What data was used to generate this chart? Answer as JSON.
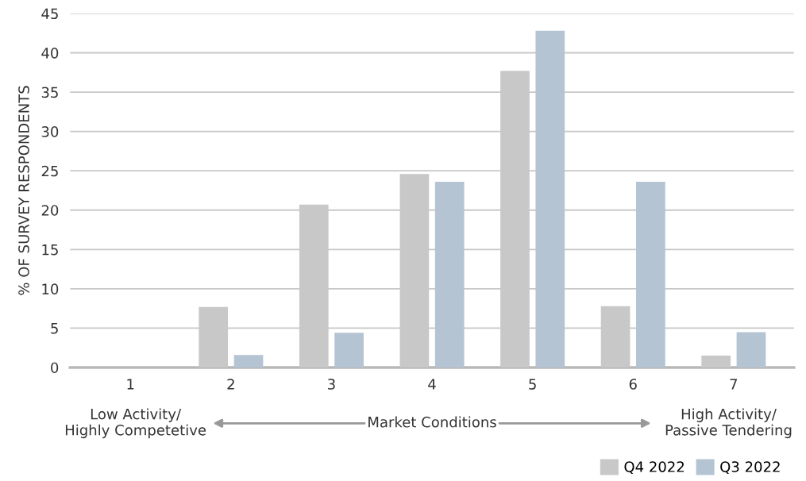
{
  "chart_data": {
    "type": "bar",
    "ylabel": "% OF SURVEY RESPONDENTS",
    "categories": [
      "1",
      "2",
      "3",
      "4",
      "5",
      "6",
      "7"
    ],
    "series": [
      {
        "name": "Q4 2022",
        "color": "#c8c8c8",
        "values": [
          0,
          7.7,
          20.7,
          24.6,
          37.7,
          7.8,
          1.5
        ]
      },
      {
        "name": "Q3 2022",
        "color": "#b5c4d3",
        "values": [
          0,
          1.6,
          4.4,
          23.6,
          42.8,
          23.6,
          4.5
        ]
      }
    ],
    "ylim": [
      0,
      45
    ],
    "yticks": [
      0,
      5,
      10,
      15,
      20,
      25,
      30,
      35,
      40,
      45
    ],
    "grid": "y",
    "legend": "bottom right",
    "annotations": [
      "Low Activity/\nHighly Competetive",
      "Market Conditions",
      "High Activity/\nPassive Tendering"
    ]
  }
}
